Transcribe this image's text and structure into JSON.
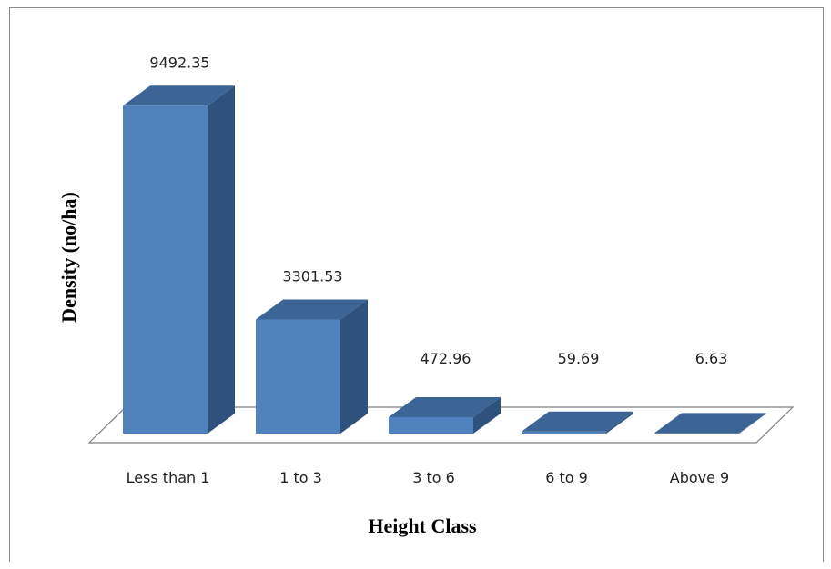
{
  "chart_data": {
    "type": "bar",
    "style": "3d-column",
    "categories": [
      "Less than 1",
      "1 to 3",
      "3 to 6",
      "6 to 9",
      "Above 9"
    ],
    "values": [
      9492.35,
      3301.53,
      472.96,
      59.69,
      6.63
    ],
    "data_labels": [
      "9492.35",
      "3301.53",
      "472.96",
      "59.69",
      "6.63"
    ],
    "xlabel": "Height Class",
    "ylabel": "Density (no/ha)",
    "ylim": [
      0,
      10000
    ],
    "grid": false,
    "legend": "none",
    "colors": {
      "front": "#4f81bd",
      "side": "#2f527d",
      "top": "#3c6596",
      "floor_edge": "#7f7f7f"
    }
  }
}
